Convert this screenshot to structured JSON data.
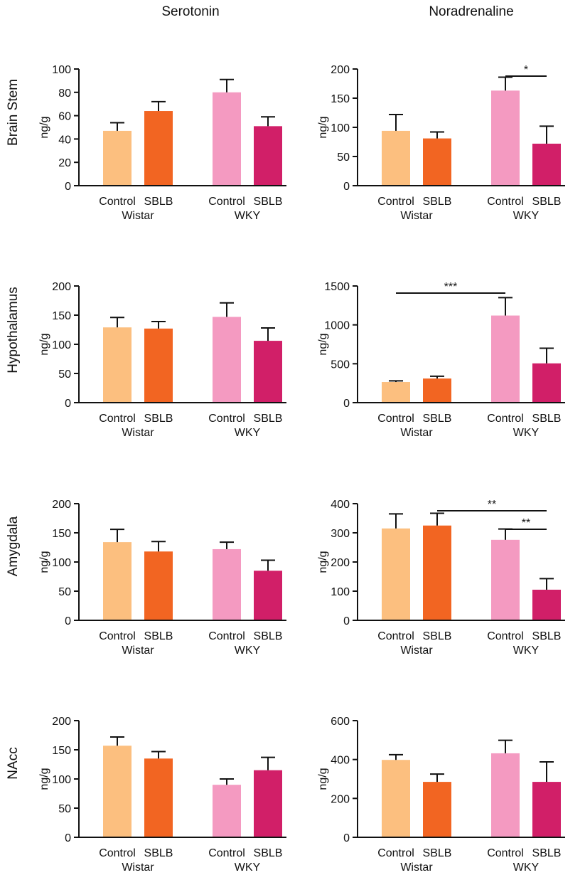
{
  "figure": {
    "column_titles": [
      "Serotonin",
      "Noradrenaline"
    ],
    "row_titles": [
      "Brain Stem",
      "Hypothalamus",
      "Amygdala",
      "NAcc"
    ]
  },
  "colors": {
    "wistar_control": "#FCBF7F",
    "wistar_sblb": "#F26522",
    "wky_control": "#F49AC1",
    "wky_sblb": "#D11F68",
    "axis": "#111111"
  },
  "chart_data": [
    {
      "type": "bar",
      "region": "Brain Stem",
      "analyte": "Serotonin",
      "ylabel": "ng/g",
      "ylim": [
        0,
        100
      ],
      "yticks": [
        0,
        20,
        40,
        60,
        80,
        100
      ],
      "groups": [
        "Wistar",
        "WKY"
      ],
      "categories": [
        "Control",
        "SBLB",
        "Control",
        "SBLB"
      ],
      "values": [
        47,
        64,
        80,
        51
      ],
      "errors": [
        7,
        8,
        11,
        8
      ],
      "significance": []
    },
    {
      "type": "bar",
      "region": "Brain Stem",
      "analyte": "Noradrenaline",
      "ylabel": "ng/g",
      "ylim": [
        0,
        200
      ],
      "yticks": [
        0,
        50,
        100,
        150,
        200
      ],
      "groups": [
        "Wistar",
        "WKY"
      ],
      "categories": [
        "Control",
        "SBLB",
        "Control",
        "SBLB"
      ],
      "values": [
        94,
        81,
        163,
        72
      ],
      "errors": [
        28,
        11,
        23,
        30
      ],
      "significance": [
        {
          "from": 2,
          "to": 3,
          "label": "*"
        }
      ]
    },
    {
      "type": "bar",
      "region": "Hypothalamus",
      "analyte": "Serotonin",
      "ylabel": "ng/g",
      "ylim": [
        0,
        200
      ],
      "yticks": [
        0,
        50,
        100,
        150,
        200
      ],
      "groups": [
        "Wistar",
        "WKY"
      ],
      "categories": [
        "Control",
        "SBLB",
        "Control",
        "SBLB"
      ],
      "values": [
        129,
        127,
        147,
        106
      ],
      "errors": [
        17,
        12,
        24,
        22
      ],
      "significance": []
    },
    {
      "type": "bar",
      "region": "Hypothalamus",
      "analyte": "Noradrenaline",
      "ylabel": "ng/g",
      "ylim": [
        0,
        1500
      ],
      "yticks": [
        0,
        500,
        1000,
        1500
      ],
      "groups": [
        "Wistar",
        "WKY"
      ],
      "categories": [
        "Control",
        "SBLB",
        "Control",
        "SBLB"
      ],
      "values": [
        265,
        310,
        1120,
        505
      ],
      "errors": [
        15,
        30,
        230,
        195
      ],
      "significance": [
        {
          "from": 0,
          "to": 2,
          "label": "***"
        }
      ]
    },
    {
      "type": "bar",
      "region": "Amygdala",
      "analyte": "Serotonin",
      "ylabel": "ng/g",
      "ylim": [
        0,
        200
      ],
      "yticks": [
        0,
        50,
        100,
        150,
        200
      ],
      "groups": [
        "Wistar",
        "WKY"
      ],
      "categories": [
        "Control",
        "SBLB",
        "Control",
        "SBLB"
      ],
      "values": [
        134,
        118,
        122,
        85
      ],
      "errors": [
        22,
        17,
        12,
        18
      ],
      "significance": []
    },
    {
      "type": "bar",
      "region": "Amygdala",
      "analyte": "Noradrenaline",
      "ylabel": "ng/g",
      "ylim": [
        0,
        400
      ],
      "yticks": [
        0,
        100,
        200,
        300,
        400
      ],
      "groups": [
        "Wistar",
        "WKY"
      ],
      "categories": [
        "Control",
        "SBLB",
        "Control",
        "SBLB"
      ],
      "values": [
        315,
        325,
        276,
        105
      ],
      "errors": [
        50,
        42,
        37,
        38
      ],
      "significance": [
        {
          "from": 1,
          "to": 3,
          "label": "**"
        },
        {
          "from": 2,
          "to": 3,
          "label": "**"
        }
      ]
    },
    {
      "type": "bar",
      "region": "NAcc",
      "analyte": "Serotonin",
      "ylabel": "ng/g",
      "ylim": [
        0,
        200
      ],
      "yticks": [
        0,
        50,
        100,
        150,
        200
      ],
      "groups": [
        "Wistar",
        "WKY"
      ],
      "categories": [
        "Control",
        "SBLB",
        "Control",
        "SBLB"
      ],
      "values": [
        157,
        135,
        90,
        115
      ],
      "errors": [
        15,
        12,
        10,
        22
      ],
      "significance": []
    },
    {
      "type": "bar",
      "region": "NAcc",
      "analyte": "Noradrenaline",
      "ylabel": "ng/g",
      "ylim": [
        0,
        600
      ],
      "yticks": [
        0,
        200,
        400,
        600
      ],
      "groups": [
        "Wistar",
        "WKY"
      ],
      "categories": [
        "Control",
        "SBLB",
        "Control",
        "SBLB"
      ],
      "values": [
        398,
        285,
        432,
        285
      ],
      "errors": [
        27,
        40,
        67,
        103
      ],
      "significance": []
    }
  ]
}
